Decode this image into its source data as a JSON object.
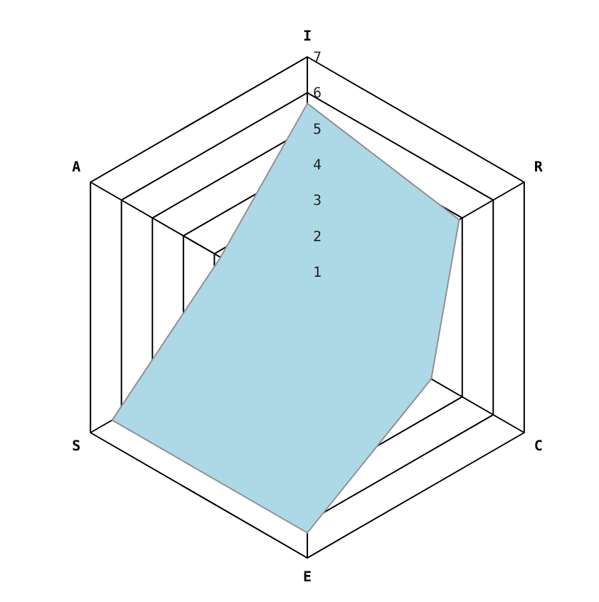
{
  "chart_data": {
    "type": "radar",
    "categories": [
      "I",
      "R",
      "C",
      "E",
      "S",
      "A"
    ],
    "series": [
      {
        "color": "#add8e6",
        "values": [
          5.7,
          4.9,
          4.0,
          6.3,
          6.3,
          2.8
        ]
      }
    ],
    "ylim": [
      0,
      7
    ],
    "yticks": [
      1,
      2,
      3,
      4,
      5,
      6,
      7
    ],
    "grid": true,
    "legend": false
  }
}
